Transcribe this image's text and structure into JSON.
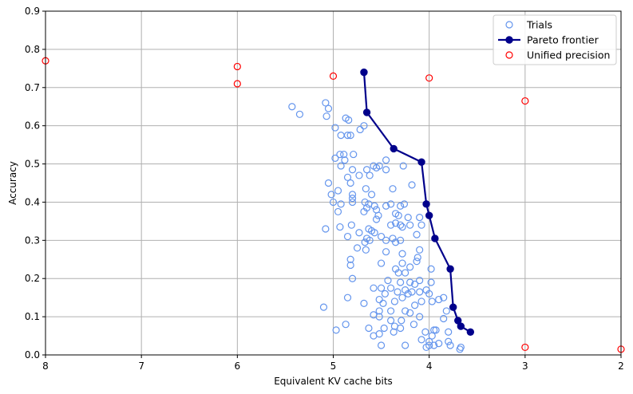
{
  "chart_data": {
    "type": "scatter",
    "xlabel": "Equivalent KV cache bits",
    "ylabel": "Accuracy",
    "xlim": [
      8,
      2
    ],
    "ylim": [
      0,
      0.9
    ],
    "x_ticks": [
      "8",
      "7",
      "6",
      "5",
      "4",
      "3",
      "2"
    ],
    "y_ticks": [
      "0.0",
      "0.1",
      "0.2",
      "0.3",
      "0.4",
      "0.5",
      "0.6",
      "0.7",
      "0.8",
      "0.9"
    ],
    "grid": true,
    "legend_position": "top-right",
    "colors": {
      "trials": "#6495ed",
      "pareto": "#00008b",
      "unified": "#ff0000"
    },
    "series": [
      {
        "name": "Trials",
        "kind": "open-circle",
        "points": [
          [
            5.43,
            0.65
          ],
          [
            5.35,
            0.63
          ],
          [
            5.08,
            0.66
          ],
          [
            5.05,
            0.645
          ],
          [
            5.07,
            0.625
          ],
          [
            4.98,
            0.595
          ],
          [
            4.87,
            0.62
          ],
          [
            4.84,
            0.615
          ],
          [
            4.72,
            0.59
          ],
          [
            4.68,
            0.6
          ],
          [
            4.92,
            0.575
          ],
          [
            4.85,
            0.575
          ],
          [
            4.82,
            0.575
          ],
          [
            4.98,
            0.515
          ],
          [
            4.93,
            0.525
          ],
          [
            4.89,
            0.525
          ],
          [
            4.79,
            0.525
          ],
          [
            4.88,
            0.51
          ],
          [
            4.92,
            0.495
          ],
          [
            4.45,
            0.51
          ],
          [
            4.27,
            0.495
          ],
          [
            4.58,
            0.495
          ],
          [
            4.55,
            0.49
          ],
          [
            4.52,
            0.495
          ],
          [
            4.45,
            0.485
          ],
          [
            4.65,
            0.485
          ],
          [
            4.8,
            0.485
          ],
          [
            5.05,
            0.45
          ],
          [
            4.85,
            0.465
          ],
          [
            4.73,
            0.47
          ],
          [
            4.62,
            0.47
          ],
          [
            4.82,
            0.45
          ],
          [
            4.18,
            0.445
          ],
          [
            5.02,
            0.42
          ],
          [
            4.95,
            0.43
          ],
          [
            4.8,
            0.42
          ],
          [
            4.8,
            0.41
          ],
          [
            4.66,
            0.435
          ],
          [
            4.6,
            0.42
          ],
          [
            4.38,
            0.435
          ],
          [
            5.0,
            0.4
          ],
          [
            4.92,
            0.395
          ],
          [
            4.8,
            0.4
          ],
          [
            4.67,
            0.4
          ],
          [
            4.63,
            0.395
          ],
          [
            4.57,
            0.39
          ],
          [
            4.45,
            0.39
          ],
          [
            4.4,
            0.395
          ],
          [
            4.3,
            0.39
          ],
          [
            4.26,
            0.395
          ],
          [
            4.95,
            0.375
          ],
          [
            4.68,
            0.375
          ],
          [
            4.65,
            0.385
          ],
          [
            4.55,
            0.38
          ],
          [
            4.53,
            0.365
          ],
          [
            4.55,
            0.355
          ],
          [
            4.35,
            0.37
          ],
          [
            4.32,
            0.365
          ],
          [
            4.22,
            0.36
          ],
          [
            4.1,
            0.36
          ],
          [
            4.81,
            0.34
          ],
          [
            4.93,
            0.335
          ],
          [
            4.6,
            0.325
          ],
          [
            4.63,
            0.33
          ],
          [
            4.57,
            0.32
          ],
          [
            4.4,
            0.34
          ],
          [
            4.35,
            0.345
          ],
          [
            4.3,
            0.34
          ],
          [
            4.28,
            0.335
          ],
          [
            4.2,
            0.34
          ],
          [
            4.08,
            0.34
          ],
          [
            5.08,
            0.33
          ],
          [
            4.85,
            0.31
          ],
          [
            4.73,
            0.32
          ],
          [
            4.65,
            0.305
          ],
          [
            4.62,
            0.3
          ],
          [
            4.67,
            0.295
          ],
          [
            4.5,
            0.31
          ],
          [
            4.45,
            0.3
          ],
          [
            4.38,
            0.305
          ],
          [
            4.35,
            0.295
          ],
          [
            4.3,
            0.3
          ],
          [
            4.13,
            0.315
          ],
          [
            4.75,
            0.28
          ],
          [
            4.66,
            0.275
          ],
          [
            4.45,
            0.27
          ],
          [
            4.28,
            0.265
          ],
          [
            4.1,
            0.275
          ],
          [
            4.12,
            0.255
          ],
          [
            4.82,
            0.25
          ],
          [
            4.82,
            0.235
          ],
          [
            4.5,
            0.24
          ],
          [
            4.35,
            0.225
          ],
          [
            4.28,
            0.24
          ],
          [
            4.2,
            0.23
          ],
          [
            4.13,
            0.245
          ],
          [
            3.98,
            0.225
          ],
          [
            4.8,
            0.2
          ],
          [
            4.43,
            0.195
          ],
          [
            4.32,
            0.215
          ],
          [
            4.25,
            0.215
          ],
          [
            4.3,
            0.19
          ],
          [
            4.2,
            0.19
          ],
          [
            4.15,
            0.185
          ],
          [
            4.1,
            0.195
          ],
          [
            3.98,
            0.19
          ],
          [
            4.58,
            0.175
          ],
          [
            4.5,
            0.175
          ],
          [
            4.46,
            0.16
          ],
          [
            4.4,
            0.175
          ],
          [
            4.33,
            0.165
          ],
          [
            4.25,
            0.17
          ],
          [
            4.22,
            0.16
          ],
          [
            4.18,
            0.165
          ],
          [
            4.1,
            0.165
          ],
          [
            4.03,
            0.17
          ],
          [
            4.0,
            0.16
          ],
          [
            4.85,
            0.15
          ],
          [
            4.68,
            0.135
          ],
          [
            4.52,
            0.145
          ],
          [
            4.48,
            0.135
          ],
          [
            4.36,
            0.14
          ],
          [
            4.28,
            0.15
          ],
          [
            4.15,
            0.13
          ],
          [
            4.08,
            0.14
          ],
          [
            3.97,
            0.14
          ],
          [
            5.1,
            0.125
          ],
          [
            4.52,
            0.115
          ],
          [
            4.52,
            0.1
          ],
          [
            4.4,
            0.115
          ],
          [
            4.25,
            0.115
          ],
          [
            4.2,
            0.11
          ],
          [
            4.1,
            0.1
          ],
          [
            3.85,
            0.15
          ],
          [
            3.9,
            0.145
          ],
          [
            4.87,
            0.08
          ],
          [
            4.58,
            0.105
          ],
          [
            4.4,
            0.09
          ],
          [
            4.36,
            0.075
          ],
          [
            4.29,
            0.09
          ],
          [
            4.3,
            0.07
          ],
          [
            4.16,
            0.08
          ],
          [
            3.85,
            0.095
          ],
          [
            3.82,
            0.115
          ],
          [
            4.97,
            0.065
          ],
          [
            4.63,
            0.07
          ],
          [
            4.47,
            0.07
          ],
          [
            4.37,
            0.06
          ],
          [
            4.52,
            0.055
          ],
          [
            4.58,
            0.05
          ],
          [
            4.04,
            0.06
          ],
          [
            3.95,
            0.065
          ],
          [
            3.93,
            0.065
          ],
          [
            3.97,
            0.05
          ],
          [
            3.8,
            0.06
          ],
          [
            4.5,
            0.025
          ],
          [
            4.25,
            0.025
          ],
          [
            4.08,
            0.04
          ],
          [
            4.0,
            0.035
          ],
          [
            4.0,
            0.025
          ],
          [
            3.95,
            0.025
          ],
          [
            3.9,
            0.03
          ],
          [
            3.8,
            0.035
          ],
          [
            4.03,
            0.02
          ],
          [
            3.78,
            0.025
          ],
          [
            3.67,
            0.02
          ],
          [
            3.68,
            0.015
          ]
        ]
      },
      {
        "name": "Pareto frontier",
        "kind": "line-dot",
        "points": [
          [
            4.68,
            0.74
          ],
          [
            4.65,
            0.635
          ],
          [
            4.37,
            0.54
          ],
          [
            4.08,
            0.505
          ],
          [
            4.03,
            0.395
          ],
          [
            4.0,
            0.365
          ],
          [
            3.94,
            0.305
          ],
          [
            3.78,
            0.225
          ],
          [
            3.75,
            0.125
          ],
          [
            3.7,
            0.09
          ],
          [
            3.67,
            0.075
          ],
          [
            3.57,
            0.06
          ]
        ]
      },
      {
        "name": "Unified precision",
        "kind": "open-circle",
        "points": [
          [
            8,
            0.77
          ],
          [
            6,
            0.755
          ],
          [
            6,
            0.71
          ],
          [
            5,
            0.73
          ],
          [
            4,
            0.725
          ],
          [
            3,
            0.665
          ],
          [
            3,
            0.02
          ],
          [
            2,
            0.015
          ]
        ]
      }
    ]
  }
}
